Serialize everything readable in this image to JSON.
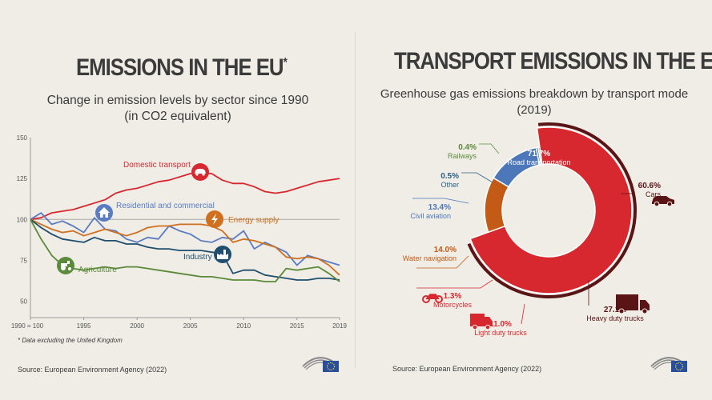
{
  "left": {
    "title": "EMISSIONS IN THE EU",
    "title_mark": "*",
    "subtitle_line1": "Change in emission levels by sector since 1990",
    "subtitle_line2": "(in CO2 equivalent)",
    "footnote": "* Data excluding the United Kingdom",
    "source": "Source: European Environment Agency (2022)"
  },
  "right": {
    "title": "TRANSPORT EMISSIONS IN THE EU",
    "subtitle_line1": "Greenhouse gas emissions breakdown by transport mode",
    "subtitle_line2": "(2019)",
    "source": "Source: European Environment Agency (2022)"
  },
  "icons": {
    "car": "car-icon",
    "house": "house-icon",
    "lightning": "lightning-icon",
    "tractor": "tractor-icon",
    "factory": "factory-icon",
    "motorcycle": "motorcycle-icon",
    "van": "van-icon",
    "truck": "truck-icon",
    "logo": "european-parliament-logo"
  },
  "chart_data": [
    {
      "type": "line",
      "title": "Change in emission levels by sector since 1990",
      "x_tick_labels": [
        "1990 = 100",
        "1995",
        "2000",
        "2005",
        "2010",
        "2015",
        "2019"
      ],
      "y_tick_labels": [
        "150",
        "125",
        "100",
        "75",
        "50"
      ],
      "ylim": [
        40,
        150
      ],
      "xlim": [
        1990,
        2019
      ],
      "grid": false,
      "reference_line": 100,
      "x": [
        1990,
        1991,
        1992,
        1993,
        1994,
        1995,
        1996,
        1997,
        1998,
        1999,
        2000,
        2001,
        2002,
        2003,
        2004,
        2005,
        2006,
        2007,
        2008,
        2009,
        2010,
        2011,
        2012,
        2013,
        2014,
        2015,
        2016,
        2017,
        2018,
        2019
      ],
      "series": [
        {
          "name": "Domestic transport",
          "color": "#d8282f",
          "values": [
            100,
            101,
            104,
            105,
            106,
            108,
            110,
            112,
            116,
            118,
            119,
            121,
            123,
            124,
            126,
            128,
            128,
            128,
            124,
            122,
            122,
            120,
            117,
            116,
            117,
            119,
            121,
            123,
            124,
            125
          ]
        },
        {
          "name": "Residential and commercial",
          "color": "#5b7cc2",
          "values": [
            100,
            104,
            97,
            99,
            96,
            92,
            101,
            94,
            93,
            88,
            86,
            89,
            88,
            96,
            93,
            91,
            87,
            86,
            89,
            88,
            93,
            82,
            86,
            83,
            80,
            72,
            78,
            76,
            74,
            72
          ]
        },
        {
          "name": "Energy supply",
          "color": "#d0701e",
          "values": [
            100,
            97,
            94,
            92,
            93,
            90,
            92,
            94,
            92,
            90,
            92,
            95,
            96,
            96,
            97,
            97,
            97,
            96,
            93,
            86,
            88,
            87,
            85,
            83,
            77,
            76,
            77,
            76,
            72,
            66
          ]
        },
        {
          "name": "Industry",
          "color": "#1f4e6e",
          "values": [
            100,
            95,
            91,
            88,
            87,
            86,
            89,
            87,
            87,
            85,
            85,
            83,
            82,
            82,
            81,
            81,
            81,
            80,
            79,
            67,
            69,
            69,
            66,
            65,
            64,
            63,
            63,
            64,
            64,
            63
          ]
        },
        {
          "name": "Agriculture",
          "color": "#5b8a3a",
          "values": [
            100,
            88,
            78,
            72,
            70,
            69,
            70,
            71,
            70,
            71,
            71,
            70,
            69,
            68,
            67,
            66,
            65,
            65,
            64,
            63,
            63,
            63,
            62,
            62,
            70,
            69,
            70,
            71,
            67,
            62
          ]
        }
      ]
    },
    {
      "type": "pie",
      "title": "Greenhouse gas emissions breakdown by transport mode",
      "slices": [
        {
          "label": "Road transportation",
          "value": 71.7,
          "display": "71.7%",
          "color": "#d8282f"
        },
        {
          "label": "Water navigation",
          "value": 14.0,
          "display": "14.0%",
          "color": "#c35a16"
        },
        {
          "label": "Civil aviation",
          "value": 13.4,
          "display": "13.4%",
          "color": "#4c77b9"
        },
        {
          "label": "Other",
          "value": 0.5,
          "display": "0.5%",
          "color": "#2b5f86"
        },
        {
          "label": "Railways",
          "value": 0.4,
          "display": "0.4%",
          "color": "#5b8a3a"
        }
      ],
      "road_breakdown": [
        {
          "label": "Cars",
          "value": 60.6,
          "display": "60.6%"
        },
        {
          "label": "Heavy duty trucks",
          "value": 27.1,
          "display": "27.1%"
        },
        {
          "label": "Light duty trucks",
          "value": 11.0,
          "display": "11.0%"
        },
        {
          "label": "Motorcycles",
          "value": 1.3,
          "display": "1.3%"
        }
      ],
      "legend_placement": "around"
    }
  ]
}
